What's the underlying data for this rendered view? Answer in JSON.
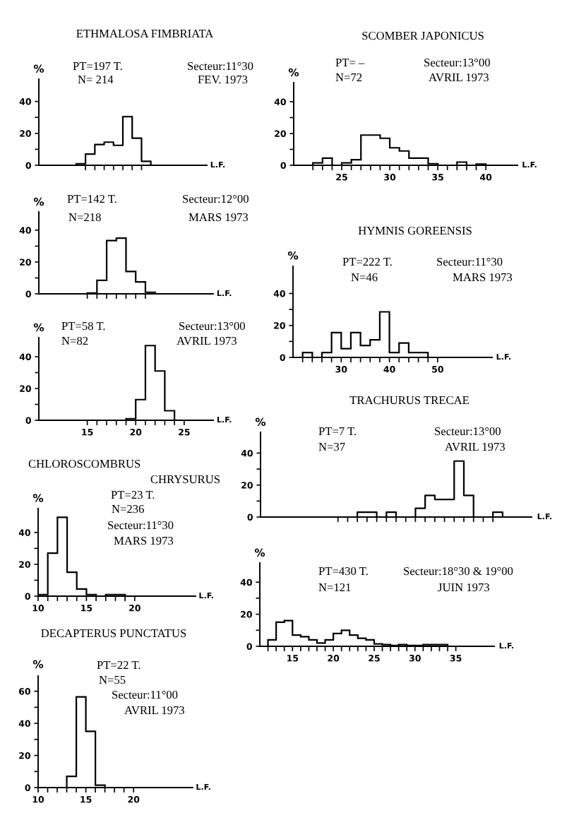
{
  "chart_data": [
    {
      "type": "step",
      "title": "ETHMALOSA FIMBRIATA",
      "xlabel": "L.F.",
      "ylabel": "%",
      "annotations": [
        "PT=197 T.",
        "N= 214",
        "Secteur:11°30",
        "FEV. 1973"
      ],
      "categories": [
        null,
        null,
        null,
        null,
        null,
        null,
        null,
        null,
        null,
        null,
        null,
        null,
        null,
        null,
        null,
        null
      ],
      "values": [
        0,
        0,
        0,
        1,
        7,
        13,
        14.5,
        12.5,
        30.5,
        17,
        2.5,
        0,
        0,
        0,
        0,
        0
      ],
      "color": "#000000",
      "ylim": [
        0,
        54
      ],
      "yticks": [
        0,
        {
          "value": 10,
          "label": null
        },
        20,
        {
          "value": 30,
          "label": null
        },
        40
      ]
    },
    {
      "type": "histogram",
      "title": "SCOMBER JAPONICUS",
      "xlabel": "L.F.",
      "ylabel": "%",
      "annotations": [
        "PT= –",
        "N=72",
        "Secteur:13°00",
        "AVRIL 1973"
      ],
      "bins": [
        22,
        23,
        24,
        25,
        26,
        27,
        28,
        29,
        30,
        31,
        32,
        33,
        34,
        35,
        36,
        37,
        38,
        39,
        40
      ],
      "values": [
        1.5,
        4.5,
        0,
        1.5,
        3.5,
        19,
        19,
        17,
        11,
        9,
        4.5,
        4.5,
        1,
        0,
        0,
        2,
        0,
        0.7
      ],
      "color": "#000000",
      "xlim": [
        20,
        43.3
      ],
      "ylim": [
        0,
        52
      ],
      "xticks": [
        {
          "value": 22,
          "label": null
        },
        {
          "value": 23,
          "label": null
        },
        {
          "value": 24,
          "label": null
        },
        25,
        {
          "value": 26,
          "label": null
        },
        {
          "value": 27,
          "label": null
        },
        {
          "value": 28,
          "label": null
        },
        {
          "value": 29,
          "label": null
        },
        30,
        {
          "value": 31,
          "label": null
        },
        {
          "value": 32,
          "label": null
        },
        {
          "value": 33,
          "label": null
        },
        {
          "value": 34,
          "label": null
        },
        35,
        {
          "value": 36,
          "label": null
        },
        {
          "value": 37,
          "label": null
        },
        {
          "value": 38,
          "label": null
        },
        {
          "value": 39,
          "label": null
        },
        40
      ],
      "yticks": [
        0,
        {
          "value": 10,
          "label": null
        },
        20,
        {
          "value": 30,
          "label": null
        },
        40
      ]
    },
    {
      "type": "histogram",
      "xlabel": "L.F.",
      "ylabel": "%",
      "annotations": [
        "PT=142 T.",
        "N=218",
        "Secteur:12°00",
        "MARS 1973"
      ],
      "bins": [
        15,
        16,
        17,
        18,
        19,
        20,
        21,
        22
      ],
      "values": [
        0.5,
        8.5,
        33.5,
        35,
        14,
        7.5,
        1
      ],
      "color": "#000000",
      "xlim": [
        10,
        28
      ],
      "ylim": [
        0,
        51.5
      ],
      "xticks": [
        {
          "value": 15,
          "label": null
        },
        {
          "value": 16,
          "label": null
        },
        {
          "value": 17,
          "label": null
        },
        {
          "value": 18,
          "label": null
        },
        {
          "value": 19,
          "label": null
        },
        {
          "value": 20,
          "label": null
        },
        {
          "value": 21,
          "label": null
        }
      ],
      "yticks": [
        0,
        {
          "value": 10,
          "label": null
        },
        20,
        {
          "value": 30,
          "label": null
        },
        40
      ],
      "tick_labels": "y"
    },
    {
      "type": "histogram",
      "title": "HYMNIS GOREENSIS",
      "xlabel": "L.F.",
      "ylabel": "%",
      "annotations": [
        "PT=222 T.",
        "N=46",
        "Secteur:11°30",
        "MARS 1973"
      ],
      "bins": [
        22,
        24,
        26,
        28,
        30,
        32,
        34,
        36,
        38,
        40,
        42,
        44,
        46,
        48
      ],
      "values": [
        3,
        0,
        3,
        15.5,
        5.5,
        15.5,
        7.5,
        11,
        28.5,
        3,
        9,
        3,
        3
      ],
      "color": "#000000",
      "xlim": [
        20,
        61.3
      ],
      "ylim": [
        0,
        57
      ],
      "xticks": [
        {
          "value": 22,
          "label": null
        },
        {
          "value": 24,
          "label": null
        },
        {
          "value": 26,
          "label": null
        },
        {
          "value": 28,
          "label": null
        },
        30,
        {
          "value": 32,
          "label": null
        },
        {
          "value": 34,
          "label": null
        },
        {
          "value": 36,
          "label": null
        },
        {
          "value": 38,
          "label": null
        },
        40,
        {
          "value": 42,
          "label": null
        },
        {
          "value": 44,
          "label": null
        },
        {
          "value": 46,
          "label": null
        },
        {
          "value": 48,
          "label": null
        },
        50
      ],
      "yticks": [
        0,
        {
          "value": 10,
          "label": null
        },
        20,
        {
          "value": 30,
          "label": null
        },
        40
      ]
    },
    {
      "type": "histogram",
      "xlabel": "L.F.",
      "ylabel": "%",
      "annotations": [
        "PT=58 T.",
        "N=82",
        "Secteur:13°00",
        "AVRIL 1973"
      ],
      "bins": [
        19,
        20,
        21,
        22,
        23,
        24
      ],
      "values": [
        1,
        13,
        47,
        31,
        6
      ],
      "color": "#000000",
      "xlim": [
        10,
        28
      ],
      "ylim": [
        0,
        52
      ],
      "xticks": [
        15,
        {
          "value": 16,
          "label": null
        },
        {
          "value": 17,
          "label": null
        },
        {
          "value": 18,
          "label": null
        },
        {
          "value": 19,
          "label": null
        },
        20,
        {
          "value": 21,
          "label": null
        },
        {
          "value": 22,
          "label": null
        },
        {
          "value": 23,
          "label": null
        },
        {
          "value": 24,
          "label": null
        },
        25
      ],
      "yticks": [
        0,
        {
          "value": 10,
          "label": null
        },
        20,
        {
          "value": 30,
          "label": null
        },
        40
      ]
    },
    {
      "type": "step",
      "title": "TRACHURUS TRECAE",
      "xlabel": "L.F.",
      "ylabel": "%",
      "annotations": [
        "PT=7 T.",
        "N=37",
        "Secteur:13°00",
        "AVRIL 1973"
      ],
      "categories": [
        null,
        null,
        null,
        null,
        null,
        null,
        null,
        null,
        null,
        null,
        null,
        null,
        null,
        null,
        null,
        null,
        null,
        null,
        null,
        null,
        null,
        null,
        null,
        null,
        null,
        null,
        null,
        null
      ],
      "values": [
        0,
        0,
        0,
        0,
        0,
        0,
        0,
        0,
        0,
        0,
        3,
        3,
        0,
        3,
        0,
        0,
        5.5,
        13.5,
        11,
        11,
        35,
        13.5,
        0,
        0,
        3,
        0,
        0,
        0
      ],
      "color": "#000000",
      "ylim": [
        0,
        53
      ],
      "yticks": [
        0,
        {
          "value": 10,
          "label": null
        },
        20,
        {
          "value": 30,
          "label": null
        },
        40
      ]
    },
    {
      "type": "histogram",
      "title": "CHLOROSCOMBRUS\nCHRYSURUS",
      "xlabel": "L.F.",
      "ylabel": "%",
      "annotations": [
        "PT=23 T.",
        "N=236",
        "Secteur:11°30",
        "MARS 1973"
      ],
      "bins": [
        10,
        11,
        12,
        13,
        14,
        15,
        16,
        17,
        18,
        19
      ],
      "values": [
        1,
        27,
        49.5,
        15,
        4.5,
        1,
        0,
        1,
        1
      ],
      "color": "#000000",
      "xlim": [
        10,
        26.3
      ],
      "ylim": [
        0,
        55
      ],
      "xticks": [
        10,
        {
          "value": 11,
          "label": null
        },
        {
          "value": 12,
          "label": null
        },
        {
          "value": 13,
          "label": null
        },
        {
          "value": 14,
          "label": null
        },
        15,
        {
          "value": 16,
          "label": null
        },
        {
          "value": 17,
          "label": null
        },
        {
          "value": 18,
          "label": null
        },
        {
          "value": 19,
          "label": null
        },
        20
      ],
      "yticks": [
        0,
        {
          "value": 10,
          "label": null
        },
        20,
        {
          "value": 30,
          "label": null
        },
        40
      ]
    },
    {
      "type": "histogram",
      "xlabel": "L.F.",
      "ylabel": "%",
      "annotations": [
        "PT=430 T.",
        "N=121",
        "Secteur:18°30 & 19°00",
        "JUIN 1973"
      ],
      "bins": [
        12,
        13,
        14,
        15,
        16,
        17,
        18,
        19,
        20,
        21,
        22,
        23,
        24,
        25,
        26,
        27,
        28,
        29,
        30,
        31,
        32,
        33,
        34
      ],
      "values": [
        4,
        15,
        16,
        7,
        6,
        4,
        2,
        4,
        8,
        10,
        7,
        5,
        4,
        1.5,
        1,
        0.5,
        1,
        0.5,
        0.5,
        1,
        1,
        1
      ],
      "color": "#000000",
      "xlim": [
        11,
        39.7
      ],
      "ylim": [
        0,
        52
      ],
      "xticks": [
        {
          "value": 12,
          "label": null
        },
        {
          "value": 13,
          "label": null
        },
        {
          "value": 14,
          "label": null
        },
        15,
        {
          "value": 16,
          "label": null
        },
        {
          "value": 17,
          "label": null
        },
        {
          "value": 18,
          "label": null
        },
        {
          "value": 19,
          "label": null
        },
        20,
        {
          "value": 21,
          "label": null
        },
        {
          "value": 22,
          "label": null
        },
        {
          "value": 23,
          "label": null
        },
        {
          "value": 24,
          "label": null
        },
        25,
        {
          "value": 26,
          "label": null
        },
        {
          "value": 27,
          "label": null
        },
        {
          "value": 28,
          "label": null
        },
        {
          "value": 29,
          "label": null
        },
        30,
        {
          "value": 31,
          "label": null
        },
        {
          "value": 32,
          "label": null
        },
        {
          "value": 33,
          "label": null
        },
        {
          "value": 34,
          "label": null
        },
        35
      ],
      "yticks": [
        0,
        {
          "value": 10,
          "label": null
        },
        20,
        {
          "value": 30,
          "label": null
        },
        40
      ]
    },
    {
      "type": "histogram",
      "title": "DECAPTERUS PUNCTATUS",
      "xlabel": "L.F.",
      "ylabel": "%",
      "annotations": [
        "PT=22 T.",
        "N=55",
        "Secteur:11°00",
        "AVRIL 1973"
      ],
      "bins": [
        13,
        14,
        15,
        16,
        17
      ],
      "values": [
        7,
        56.5,
        35,
        1.5
      ],
      "color": "#000000",
      "xlim": [
        10,
        26.2
      ],
      "ylim": [
        0,
        69.5
      ],
      "xticks": [
        10,
        {
          "value": 11,
          "label": null
        },
        {
          "value": 12,
          "label": null
        },
        {
          "value": 13,
          "label": null
        },
        {
          "value": 14,
          "label": null
        },
        15,
        {
          "value": 16,
          "label": null
        },
        {
          "value": 17,
          "label": null
        },
        {
          "value": 18,
          "label": null
        },
        {
          "value": 19,
          "label": null
        },
        20
      ],
      "yticks": [
        0,
        {
          "value": 10,
          "label": null
        },
        20,
        {
          "value": 30,
          "label": null
        },
        40,
        {
          "value": 50,
          "label": null
        },
        60
      ]
    }
  ]
}
